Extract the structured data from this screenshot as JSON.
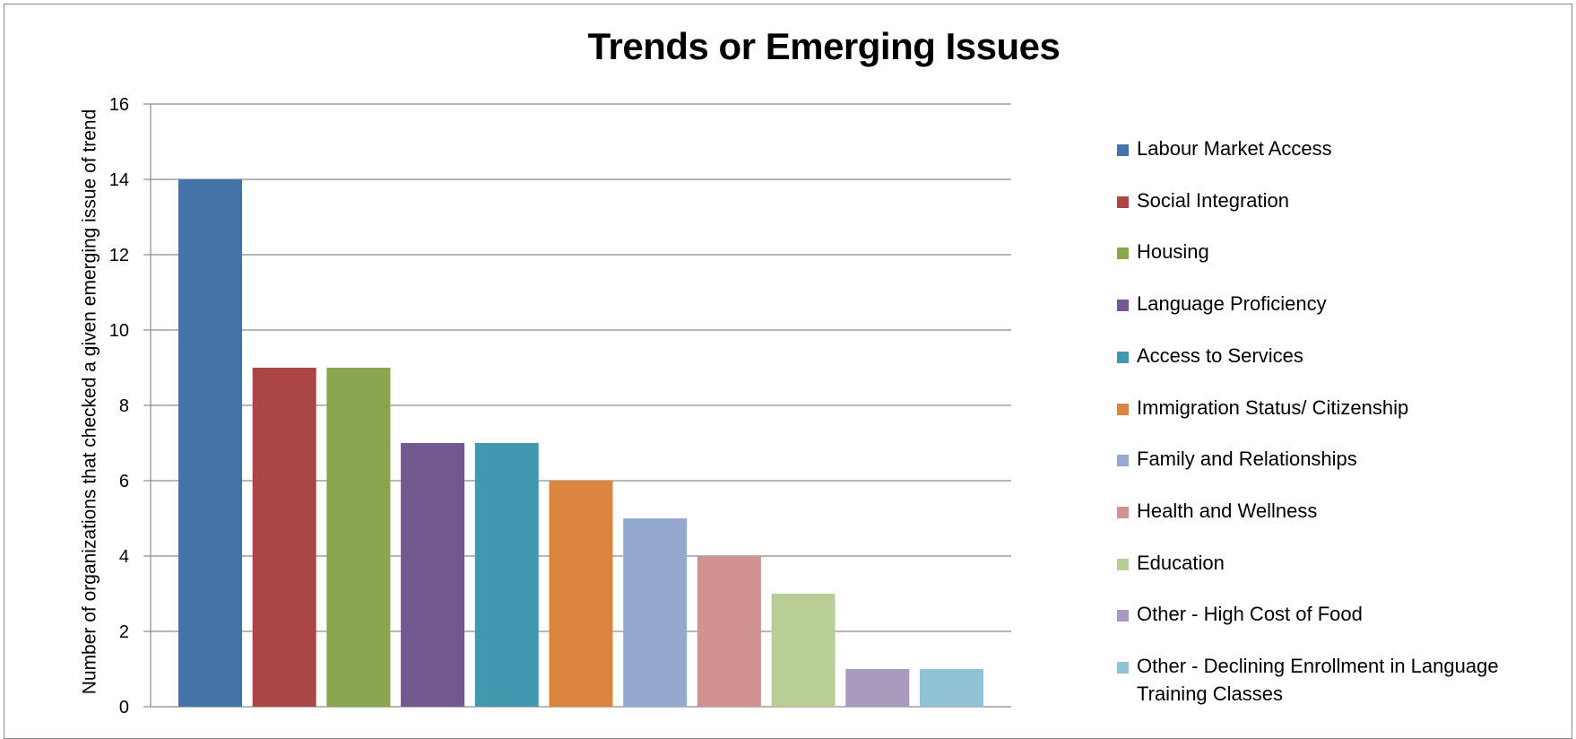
{
  "chart_data": {
    "type": "bar",
    "title": "Trends or Emerging Issues",
    "ylabel": "Number  of organizations that checked a given emerging issue of trend",
    "xlabel": "",
    "ylim": [
      0,
      16
    ],
    "yticks": [
      "0",
      "2",
      "4",
      "6",
      "8",
      "10",
      "12",
      "14",
      "16"
    ],
    "grid": true,
    "legend_position": "right",
    "series": [
      {
        "name": "Labour Market Access",
        "value": 14,
        "color": "#4573a7"
      },
      {
        "name": "Social Integration",
        "value": 9,
        "color": "#aa4644"
      },
      {
        "name": "Housing",
        "value": 9,
        "color": "#89a54e"
      },
      {
        "name": "Language Proficiency",
        "value": 7,
        "color": "#71588f"
      },
      {
        "name": "Access to Services",
        "value": 7,
        "color": "#4298af"
      },
      {
        "name": "Immigration Status/ Citizenship",
        "value": 6,
        "color": "#db843d"
      },
      {
        "name": "Family and Relationships",
        "value": 5,
        "color": "#93a9cf"
      },
      {
        "name": "Health and Wellness",
        "value": 4,
        "color": "#d19392"
      },
      {
        "name": "Education",
        "value": 3,
        "color": "#b9cd96"
      },
      {
        "name": "Other - High Cost of Food",
        "value": 1,
        "color": "#a99bbd"
      },
      {
        "name": "Other - Declining Enrollment in Language Training Classes",
        "value": 1,
        "color": "#92c3d5"
      }
    ]
  }
}
